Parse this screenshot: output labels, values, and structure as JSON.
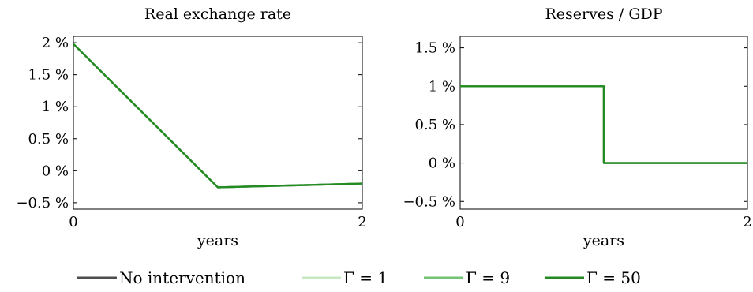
{
  "chart_data": [
    {
      "type": "line",
      "title": "Real exchange rate",
      "xlabel": "years",
      "ylabel": "",
      "xlim": [
        0,
        2
      ],
      "ylim": [
        -0.6,
        2.1
      ],
      "xticks": [
        0,
        2
      ],
      "xtick_labels": [
        "0",
        "2"
      ],
      "yticks": [
        2,
        1.5,
        1,
        0.5,
        0,
        -0.5
      ],
      "ytick_labels": [
        "2 %",
        "1.5 %",
        "1 %",
        "0.5 %",
        "0 %",
        "−0.5 %"
      ],
      "grid": false,
      "series": [
        {
          "name": "No intervention",
          "color": "#4d4d4d",
          "step": false,
          "x": [
            0,
            1,
            2
          ],
          "y": [
            1.98,
            -0.26,
            -0.2
          ]
        },
        {
          "name": "Γ = 1",
          "color": "#c7e9c0",
          "step": false,
          "x": [
            0,
            1,
            2
          ],
          "y": [
            1.98,
            -0.26,
            -0.2
          ]
        },
        {
          "name": "Γ = 9",
          "color": "#74c476",
          "step": false,
          "x": [
            0,
            1,
            2
          ],
          "y": [
            1.98,
            -0.26,
            -0.2
          ]
        },
        {
          "name": "Γ = 50",
          "color": "#238b22",
          "step": false,
          "x": [
            0,
            1,
            2
          ],
          "y": [
            1.98,
            -0.26,
            -0.2
          ]
        }
      ]
    },
    {
      "type": "line",
      "title": "Reserves / GDP",
      "xlabel": "years",
      "ylabel": "",
      "xlim": [
        0,
        2
      ],
      "ylim": [
        -0.6,
        1.65
      ],
      "xticks": [
        0,
        2
      ],
      "xtick_labels": [
        "0",
        "2"
      ],
      "yticks": [
        1.5,
        1,
        0.5,
        0,
        -0.5
      ],
      "ytick_labels": [
        "1.5 %",
        "1 %",
        "0.5 %",
        "0 %",
        "−0.5 %"
      ],
      "grid": false,
      "series": [
        {
          "name": "No intervention",
          "color": "#4d4d4d",
          "step": true,
          "x": [
            0,
            1,
            1,
            2
          ],
          "y": [
            1,
            1,
            0,
            0
          ]
        },
        {
          "name": "Γ = 1",
          "color": "#c7e9c0",
          "step": true,
          "x": [
            0,
            1,
            1,
            2
          ],
          "y": [
            1,
            1,
            0,
            0
          ]
        },
        {
          "name": "Γ = 9",
          "color": "#74c476",
          "step": true,
          "x": [
            0,
            1,
            1,
            2
          ],
          "y": [
            1,
            1,
            0,
            0
          ]
        },
        {
          "name": "Γ = 50",
          "color": "#238b22",
          "step": true,
          "x": [
            0,
            1,
            1,
            2
          ],
          "y": [
            1,
            1,
            0,
            0
          ]
        }
      ]
    }
  ],
  "legend": {
    "placement": "bottom",
    "entries": [
      {
        "label": "No intervention",
        "color": "#4d4d4d"
      },
      {
        "label": "Γ = 1",
        "color": "#c7e9c0"
      },
      {
        "label": "Γ = 9",
        "color": "#74c476"
      },
      {
        "label": "Γ = 50",
        "color": "#238b22"
      }
    ]
  }
}
